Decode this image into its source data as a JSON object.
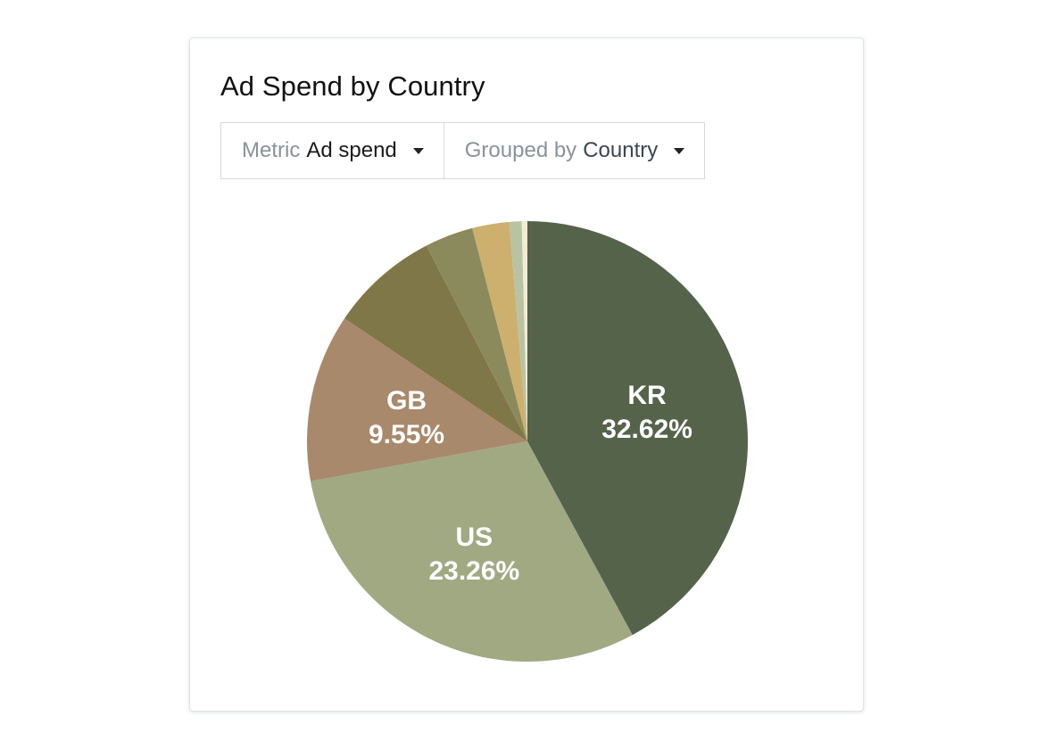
{
  "card": {
    "title": "Ad Spend by Country"
  },
  "controls": {
    "metric": {
      "prefix": "Metric",
      "value": "Ad spend"
    },
    "group": {
      "prefix": "Grouped by",
      "value": "Country"
    }
  },
  "chart_data": {
    "type": "pie",
    "title": "Ad Spend by Country",
    "slices": [
      {
        "label": "KR",
        "value": 32.62,
        "value_label": "32.62%",
        "color": "#55634b",
        "show_label": true
      },
      {
        "label": "US",
        "value": 23.26,
        "value_label": "23.26%",
        "color": "#a1a982",
        "show_label": true
      },
      {
        "label": "GB",
        "value": 9.55,
        "value_label": "9.55%",
        "color": "#a9896b",
        "show_label": true
      },
      {
        "label": "",
        "value": 6.2,
        "value_label": "",
        "color": "#7f7747",
        "show_label": false
      },
      {
        "label": "",
        "value": 2.75,
        "value_label": "",
        "color": "#8a8a5c",
        "show_label": false
      },
      {
        "label": "",
        "value": 2.1,
        "value_label": "",
        "color": "#cdb06e",
        "show_label": false
      },
      {
        "label": "",
        "value": 0.7,
        "value_label": "",
        "color": "#b8c3a3",
        "show_label": false
      },
      {
        "label": "",
        "value": 0.32,
        "value_label": "",
        "color": "#f2ecd3",
        "show_label": false
      }
    ],
    "start_angle_deg": 0,
    "direction": "clockwise",
    "legend": "none"
  }
}
